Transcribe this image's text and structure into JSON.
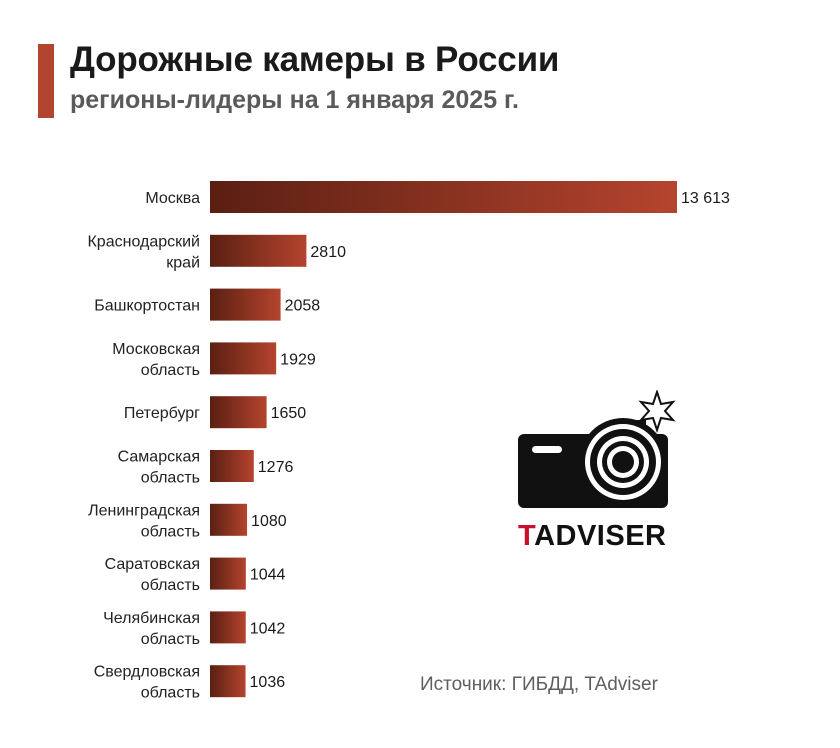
{
  "header": {
    "title": "Дорожные камеры в России",
    "subtitle": "регионы-лидеры на 1 января 2025 г."
  },
  "chart_data": {
    "type": "bar",
    "orientation": "horizontal",
    "categories": [
      [
        "Москва"
      ],
      [
        "Краснодарский",
        "край"
      ],
      [
        "Башкортостан"
      ],
      [
        "Московская",
        "область"
      ],
      [
        "Петербург"
      ],
      [
        "Самарская",
        "область"
      ],
      [
        "Ленинградская",
        "область"
      ],
      [
        "Саратовская",
        "область"
      ],
      [
        "Челябинская",
        "область"
      ],
      [
        "Свердловская",
        "область"
      ]
    ],
    "values": [
      13613,
      2810,
      2058,
      1929,
      1650,
      1276,
      1080,
      1044,
      1042,
      1036
    ],
    "value_labels": [
      "13 613",
      "2810",
      "2058",
      "1929",
      "1650",
      "1276",
      "1080",
      "1044",
      "1042",
      "1036"
    ],
    "title": "Дорожные камеры в России",
    "subtitle": "регионы-лидеры на 1 января 2025 г.",
    "xlabel": "",
    "ylabel": "",
    "legend": "none",
    "grid": false,
    "colors": {
      "bar_start": "#5a1f12",
      "bar_end": "#b5442e"
    }
  },
  "logo": {
    "text_accent": "T",
    "text_rest": "ADVISER",
    "icon": "camera-icon"
  },
  "source": "Источник: ГИБДД, TAdviser",
  "colors": {
    "accent": "#b1452f",
    "logo_t": "#c8102e"
  }
}
